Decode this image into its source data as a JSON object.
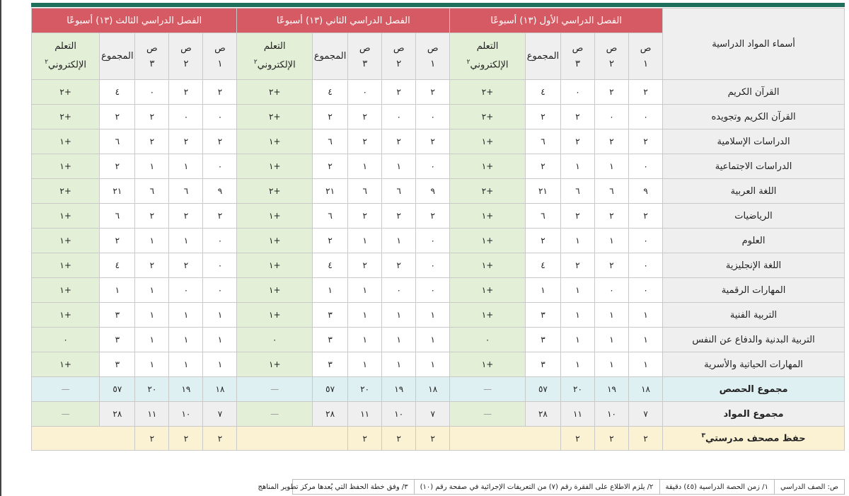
{
  "table": {
    "subject_header": "أسماء المواد الدراسية",
    "semesters": [
      "الفصل الدراسي الأول (١٣) أسبوعًا",
      "الفصل الدراسي الثاني (١٣) أسبوعًا",
      "الفصل الدراسي الثالث (١٣) أسبوعًا"
    ],
    "columns": {
      "g1": "ص\n١",
      "g2": "ص\n٢",
      "g3": "ص\n٣",
      "total": "المجموع",
      "elearn": "التعلم\nالإلكتروني",
      "elearn_sup": "٢"
    },
    "rows": [
      {
        "subject": "القرآن الكريم",
        "s": [
          [
            "٢",
            "٢",
            "٠",
            "٤",
            "+٢"
          ],
          [
            "٢",
            "٢",
            "٠",
            "٤",
            "+٢"
          ],
          [
            "٢",
            "٢",
            "٠",
            "٤",
            "+٢"
          ]
        ]
      },
      {
        "subject": "القرآن الكريم وتجويده",
        "s": [
          [
            "٠",
            "٠",
            "٢",
            "٢",
            "+٢"
          ],
          [
            "٠",
            "٠",
            "٢",
            "٢",
            "+٢"
          ],
          [
            "٠",
            "٠",
            "٢",
            "٢",
            "+٢"
          ]
        ]
      },
      {
        "subject": "الدراسات الإسلامية",
        "s": [
          [
            "٢",
            "٢",
            "٢",
            "٦",
            "+١"
          ],
          [
            "٢",
            "٢",
            "٢",
            "٦",
            "+١"
          ],
          [
            "٢",
            "٢",
            "٢",
            "٦",
            "+١"
          ]
        ]
      },
      {
        "subject": "الدراسات الاجتماعية",
        "s": [
          [
            "٠",
            "١",
            "١",
            "٢",
            "+١"
          ],
          [
            "٠",
            "١",
            "١",
            "٢",
            "+١"
          ],
          [
            "٠",
            "١",
            "١",
            "٢",
            "+١"
          ]
        ]
      },
      {
        "subject": "اللغة العربية",
        "s": [
          [
            "٩",
            "٦",
            "٦",
            "٢١",
            "+٢"
          ],
          [
            "٩",
            "٦",
            "٦",
            "٢١",
            "+٢"
          ],
          [
            "٩",
            "٦",
            "٦",
            "٢١",
            "+٢"
          ]
        ]
      },
      {
        "subject": "الرياضيات",
        "s": [
          [
            "٢",
            "٢",
            "٢",
            "٦",
            "+١"
          ],
          [
            "٢",
            "٢",
            "٢",
            "٦",
            "+١"
          ],
          [
            "٢",
            "٢",
            "٢",
            "٦",
            "+١"
          ]
        ]
      },
      {
        "subject": "العلوم",
        "s": [
          [
            "٠",
            "١",
            "١",
            "٢",
            "+١"
          ],
          [
            "٠",
            "١",
            "١",
            "٢",
            "+١"
          ],
          [
            "٠",
            "١",
            "١",
            "٢",
            "+١"
          ]
        ]
      },
      {
        "subject": "اللغة الإنجليزية",
        "s": [
          [
            "٠",
            "٢",
            "٢",
            "٤",
            "+١"
          ],
          [
            "٠",
            "٢",
            "٢",
            "٤",
            "+١"
          ],
          [
            "٠",
            "٢",
            "٢",
            "٤",
            "+١"
          ]
        ]
      },
      {
        "subject": "المهارات الرقمية",
        "s": [
          [
            "٠",
            "٠",
            "١",
            "١",
            "+١"
          ],
          [
            "٠",
            "٠",
            "١",
            "١",
            "+١"
          ],
          [
            "٠",
            "٠",
            "١",
            "١",
            "+١"
          ]
        ]
      },
      {
        "subject": "التربية الفنية",
        "s": [
          [
            "١",
            "١",
            "١",
            "٣",
            "+١"
          ],
          [
            "١",
            "١",
            "١",
            "٣",
            "+١"
          ],
          [
            "١",
            "١",
            "١",
            "٣",
            "+١"
          ]
        ]
      },
      {
        "subject": "التربية البدنية والدفاع عن النفس",
        "s": [
          [
            "١",
            "١",
            "١",
            "٣",
            "٠"
          ],
          [
            "١",
            "١",
            "١",
            "٣",
            "٠"
          ],
          [
            "١",
            "١",
            "١",
            "٣",
            "٠"
          ]
        ]
      },
      {
        "subject": "المهارات الحياتية والأسرية",
        "s": [
          [
            "١",
            "١",
            "١",
            "٣",
            "+١"
          ],
          [
            "١",
            "١",
            "١",
            "٣",
            "+١"
          ],
          [
            "١",
            "١",
            "١",
            "٣",
            "+١"
          ]
        ]
      }
    ],
    "total_periods": {
      "label": "مجموع الحصص",
      "values": [
        "١٨",
        "١٩",
        "٢٠",
        "٥٧",
        "—"
      ]
    },
    "total_subjects": {
      "label": "مجموع المواد",
      "values": [
        "٧",
        "١٠",
        "١١",
        "٢٨",
        "—"
      ]
    },
    "hifz": {
      "label": "حفظ مصحف مدرستي",
      "label_sup": "٣",
      "values": [
        "٢",
        "٢",
        "٢"
      ]
    }
  },
  "footer": [
    "ص: الصف الدراسي",
    "١/ زمن الحصة الدراسية (٤٥) دقيقة",
    "٢/ يلزم الاطلاع على الفقرة رقم (٧) من التعريفات الإجرائية في صفحة رقم (١٠)",
    "٣/ وفق خطة الحفظ التي يُعدها مركز تطوير المناهج"
  ],
  "colors": {
    "header_red": "#d65a63",
    "elearn_green": "#e3efd6",
    "totals_blue": "#dff0f2",
    "hifz_cream": "#fbf1d3",
    "top_bar": "#1e6f5c"
  }
}
